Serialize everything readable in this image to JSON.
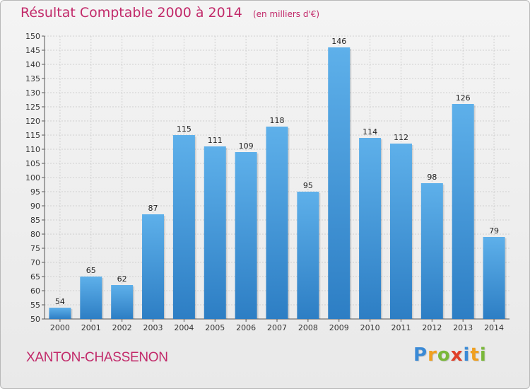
{
  "header": {
    "title": "Résultat Comptable 2000 à 2014",
    "unit": "(en milliers d'€)"
  },
  "commune": "XANTON-CHASSENON",
  "logo": {
    "text": "Proxiti",
    "letters": [
      {
        "ch": "P",
        "color": "#3a8ad6"
      },
      {
        "ch": "r",
        "color": "#f0a020"
      },
      {
        "ch": "o",
        "color": "#7ab83a"
      },
      {
        "ch": "x",
        "color": "#e0402a"
      },
      {
        "ch": "i",
        "color": "#3a8ad6"
      },
      {
        "ch": "t",
        "color": "#f0a020"
      },
      {
        "ch": "i",
        "color": "#7ab83a"
      }
    ]
  },
  "colors": {
    "title": "#c22a6a",
    "bar_top": "#5eb0ea",
    "bar_bottom": "#2d7ec4",
    "grid": "#d0d0d0"
  },
  "chart_data": {
    "type": "bar",
    "title": "Résultat Comptable 2000 à 2014",
    "subtitle": "(en milliers d'€)",
    "xlabel": "",
    "ylabel": "",
    "categories": [
      "2000",
      "2001",
      "2002",
      "2003",
      "2004",
      "2005",
      "2006",
      "2007",
      "2008",
      "2009",
      "2010",
      "2011",
      "2012",
      "2013",
      "2014"
    ],
    "values": [
      54,
      65,
      62,
      87,
      115,
      111,
      109,
      118,
      95,
      146,
      114,
      112,
      98,
      126,
      79
    ],
    "ylim": [
      50,
      150
    ],
    "ytick_step": 5,
    "grid": true
  }
}
